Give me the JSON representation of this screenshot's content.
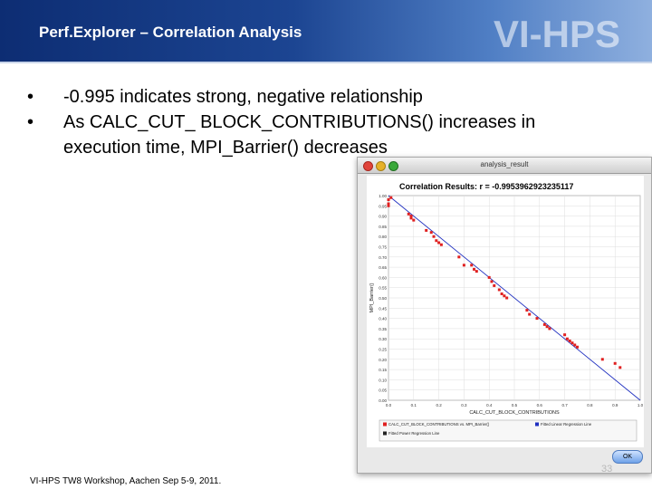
{
  "header": {
    "title": "Perf.Explorer – Correlation Analysis",
    "logo_text": "VI-HPS",
    "gradient_start": "#0d2d73",
    "gradient_end": "#8fb0df"
  },
  "bullets": [
    {
      "marker": "•",
      "text": "-0.995 indicates strong, negative relationship"
    },
    {
      "marker": "•",
      "text": "As CALC_CUT_ BLOCK_CONTRIBUTIONS() increases in execution time, MPI_Barrier() decreases"
    }
  ],
  "footer": {
    "text": "VI-HPS TW8 Workshop, Aachen Sep 5-9, 2011.",
    "page": "33"
  },
  "window": {
    "title": "analysis_result",
    "ok_label": "OK"
  },
  "chart_data": {
    "type": "scatter",
    "title": "Correlation Results: r = -0.9953962923235117",
    "xlabel": "CALC_CUT_BLOCK_CONTRIBUTIONS",
    "ylabel": "MPI_Barrier()",
    "xlim": [
      0,
      1.0
    ],
    "ylim": [
      0,
      1.0
    ],
    "xticks": [
      "0.0",
      "0.1",
      "0.2",
      "0.3",
      "0.4",
      "0.5",
      "0.6",
      "0.7",
      "0.8",
      "0.9",
      "1.0"
    ],
    "yticks": [
      "1.00",
      "0.95",
      "0.90",
      "0.85",
      "0.80",
      "0.75",
      "0.70",
      "0.65",
      "0.60",
      "0.55",
      "0.50",
      "0.45",
      "0.40",
      "0.35",
      "0.30",
      "0.25",
      "0.20",
      "0.15",
      "0.10",
      "0.05",
      "0.00"
    ],
    "series": [
      {
        "name": "CALC_CUT_BLOCK_CONTRIBUTIONS vs. MPI_Barrier()",
        "color": "#e02020",
        "points": [
          [
            0.0,
            0.98
          ],
          [
            0.0,
            0.96
          ],
          [
            0.0,
            0.95
          ],
          [
            0.01,
            0.99
          ],
          [
            0.08,
            0.91
          ],
          [
            0.09,
            0.9
          ],
          [
            0.09,
            0.89
          ],
          [
            0.1,
            0.88
          ],
          [
            0.15,
            0.83
          ],
          [
            0.17,
            0.82
          ],
          [
            0.18,
            0.8
          ],
          [
            0.19,
            0.78
          ],
          [
            0.2,
            0.77
          ],
          [
            0.21,
            0.76
          ],
          [
            0.28,
            0.7
          ],
          [
            0.3,
            0.66
          ],
          [
            0.33,
            0.66
          ],
          [
            0.34,
            0.64
          ],
          [
            0.35,
            0.63
          ],
          [
            0.4,
            0.6
          ],
          [
            0.41,
            0.58
          ],
          [
            0.42,
            0.56
          ],
          [
            0.44,
            0.54
          ],
          [
            0.45,
            0.52
          ],
          [
            0.46,
            0.51
          ],
          [
            0.47,
            0.5
          ],
          [
            0.55,
            0.44
          ],
          [
            0.56,
            0.42
          ],
          [
            0.59,
            0.4
          ],
          [
            0.62,
            0.37
          ],
          [
            0.63,
            0.36
          ],
          [
            0.64,
            0.35
          ],
          [
            0.7,
            0.32
          ],
          [
            0.71,
            0.3
          ],
          [
            0.72,
            0.29
          ],
          [
            0.73,
            0.28
          ],
          [
            0.74,
            0.27
          ],
          [
            0.75,
            0.26
          ],
          [
            0.85,
            0.2
          ],
          [
            0.9,
            0.18
          ],
          [
            0.92,
            0.16
          ]
        ]
      }
    ],
    "regression_line": {
      "name": "Fitted Linear Regression Line",
      "color": "#2030c0",
      "from": [
        0.0,
        1.0
      ],
      "to": [
        1.0,
        0.0
      ]
    },
    "legend": [
      {
        "label": "CALC_CUT_BLOCK_CONTRIBUTIONS vs. MPI_Barrier()",
        "color": "#e02020"
      },
      {
        "label": "Fitted Linear Regression Line",
        "color": "#2030c0"
      },
      {
        "label": "Fitted Power Regression Line",
        "color": "#222222"
      }
    ],
    "legend_position": "bottom"
  }
}
